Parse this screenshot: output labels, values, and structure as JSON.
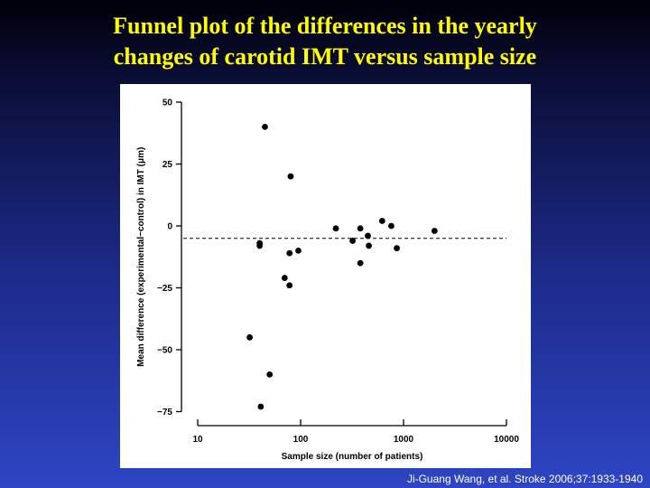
{
  "slide": {
    "title_line1": "Funnel plot of the differences in the yearly",
    "title_line2": "changes of carotid IMT versus sample size",
    "citation": "Ji-Guang Wang, et al. Stroke 2006;37:1933-1940",
    "title_color": "#ffff00"
  },
  "chart_data": {
    "type": "scatter",
    "xlabel": "Sample size (number of patients)",
    "ylabel": "Mean difference (experimental−control) in IMT (μm)",
    "x_scale": "log",
    "xlim": [
      10,
      10000
    ],
    "ylim": [
      -80,
      50
    ],
    "x_ticks": [
      10,
      100,
      1000,
      10000
    ],
    "x_tick_labels": [
      "10",
      "100",
      "1000",
      "10000"
    ],
    "y_ticks": [
      50,
      25,
      0,
      -25,
      -50,
      -75
    ],
    "y_tick_labels": [
      "50",
      "25",
      "0",
      "−25",
      "−50",
      "−75"
    ],
    "reference_line": -5,
    "grid": false,
    "points": [
      {
        "x": 45,
        "y": 40
      },
      {
        "x": 80,
        "y": 20
      },
      {
        "x": 40,
        "y": -7
      },
      {
        "x": 40,
        "y": -8
      },
      {
        "x": 78,
        "y": -11
      },
      {
        "x": 95,
        "y": -10
      },
      {
        "x": 70,
        "y": -21
      },
      {
        "x": 78,
        "y": -24
      },
      {
        "x": 32,
        "y": -45
      },
      {
        "x": 50,
        "y": -60
      },
      {
        "x": 41,
        "y": -73
      },
      {
        "x": 220,
        "y": -1
      },
      {
        "x": 320,
        "y": -6
      },
      {
        "x": 380,
        "y": -1
      },
      {
        "x": 380,
        "y": -15
      },
      {
        "x": 450,
        "y": -4
      },
      {
        "x": 460,
        "y": -8
      },
      {
        "x": 620,
        "y": 2
      },
      {
        "x": 760,
        "y": 0
      },
      {
        "x": 860,
        "y": -9
      },
      {
        "x": 2000,
        "y": -2
      }
    ]
  }
}
